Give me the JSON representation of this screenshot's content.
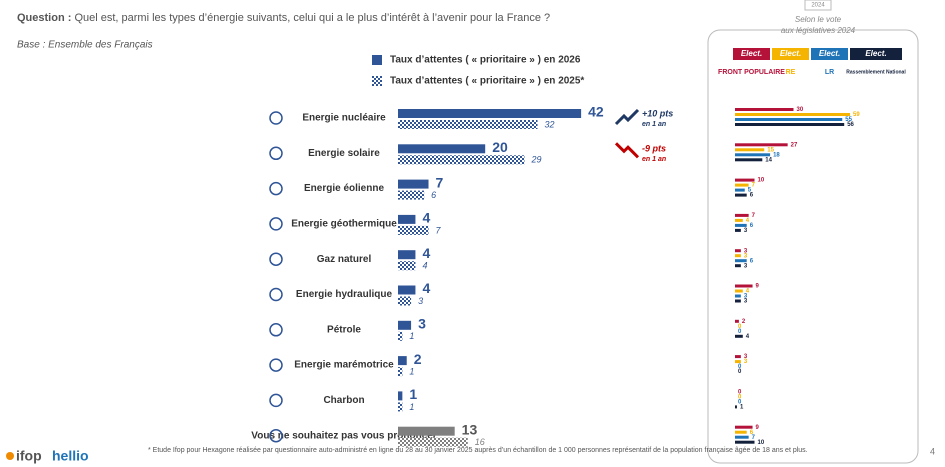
{
  "question_label": "Question :",
  "question": "Quel est, parmi les types d’énergie suivants, celui qui a le plus d’intérêt à l’avenir pour la France ?",
  "base": "Base : Ensemble des Français",
  "footnote": "* Etude Ifop pour Hexagone réalisée par questionnaire auto-administré en ligne du 28 au 30 janvier 2025 auprès d’un échantillon de 1 000 personnes représentatif de la population française âgée de 18 ans et plus.",
  "page_number": "4",
  "logo": [
    "ifop",
    "hellio"
  ],
  "chart_data": [
    {
      "type": "bar",
      "orientation": "horizontal",
      "categories": [
        "Energie nucléaire",
        "Energie solaire",
        "Energie éolienne",
        "Energie géothermique",
        "Gaz naturel",
        "Energie hydraulique",
        "Pétrole",
        "Energie marémotrice",
        "Charbon",
        "Vous ne souhaitez pas vous prononcer"
      ],
      "series": [
        {
          "name": "Taux d’attentes ( « prioritaire » ) en 2026",
          "color": "#2f5597",
          "pattern": "solid",
          "colors": [
            "#2f5597",
            "#2f5597",
            "#2f5597",
            "#2f5597",
            "#2f5597",
            "#2f5597",
            "#2f5597",
            "#2f5597",
            "#2f5597",
            "#7f7f7f"
          ],
          "values": [
            42,
            20,
            7,
            4,
            4,
            4,
            3,
            2,
            1,
            13
          ]
        },
        {
          "name": "Taux d’attentes ( « prioritaire » ) en 2025*",
          "color": "#2f5597",
          "pattern": "checker",
          "colors": [
            "#2f5597",
            "#2f5597",
            "#2f5597",
            "#2f5597",
            "#2f5597",
            "#2f5597",
            "#2f5597",
            "#2f5597",
            "#2f5597",
            "#7f7f7f"
          ],
          "values": [
            32,
            29,
            6,
            7,
            4,
            3,
            1,
            1,
            1,
            16
          ]
        }
      ],
      "annotations": [
        {
          "text": "+10 pts",
          "note": "en 1 an",
          "color": "#1f3864"
        },
        {
          "text": "-9 pts",
          "note": "en 1 an",
          "color": "#c00000"
        }
      ]
    },
    {
      "type": "bar",
      "orientation": "horizontal",
      "badge": "2024",
      "title": [
        "Selon le vote",
        "aux législatives 2024"
      ],
      "series": [
        {
          "name": "FRONT POPULAIRE",
          "header": "Elect.",
          "color": "#b5123a",
          "values": [
            30,
            27,
            10,
            7,
            3,
            9,
            2,
            3,
            0,
            9
          ]
        },
        {
          "name": "RE",
          "header": "Elect.",
          "color": "#f5b400",
          "values": [
            59,
            15,
            7,
            4,
            3,
            4,
            0,
            3,
            0,
            6
          ]
        },
        {
          "name": "LR",
          "header": "Elect.",
          "color": "#1f73b7",
          "values": [
            55,
            18,
            5,
            6,
            6,
            3,
            0,
            0,
            0,
            7
          ]
        },
        {
          "name": "Rassemblement National",
          "header": "Elect.",
          "color": "#14213d",
          "values": [
            56,
            14,
            6,
            3,
            3,
            3,
            4,
            0,
            1,
            10
          ]
        }
      ]
    }
  ]
}
